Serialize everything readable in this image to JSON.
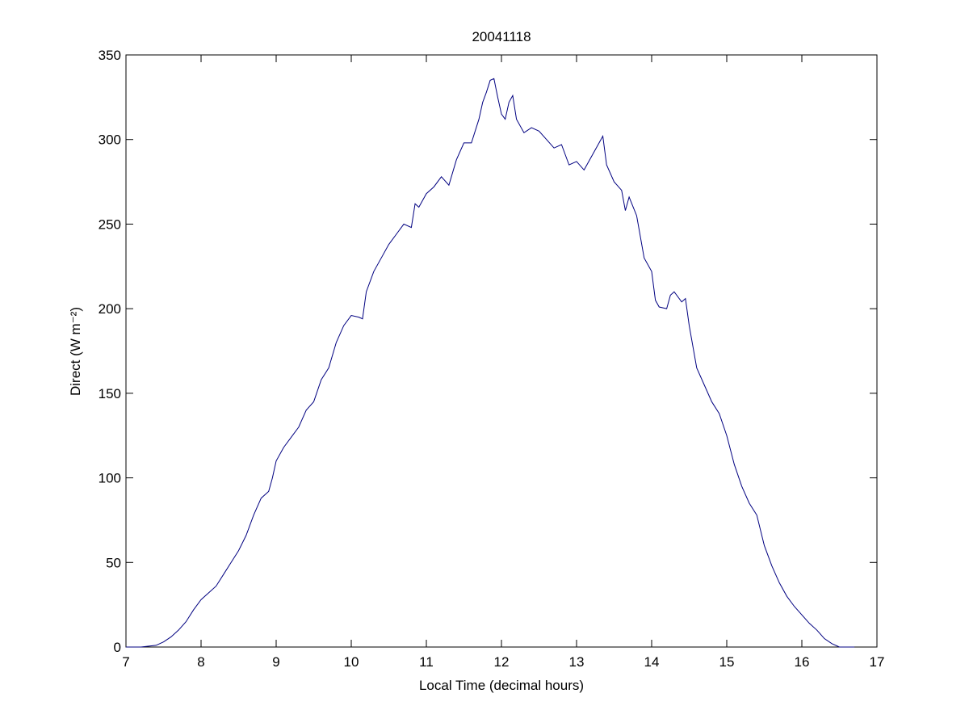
{
  "chart_data": {
    "type": "line",
    "title": "20041118",
    "x_label": "Local Time (decimal hours)",
    "y_label": "Direct (W m⁻²)",
    "xlim": [
      7,
      17
    ],
    "xticks": [
      7,
      8,
      9,
      10,
      11,
      12,
      13,
      14,
      15,
      16,
      17
    ],
    "ylim": [
      0,
      350
    ],
    "yticks": [
      0,
      50,
      100,
      150,
      200,
      250,
      300,
      350
    ],
    "grid": false,
    "series": [
      {
        "color": "#000080",
        "x": [
          7.0,
          7.2,
          7.4,
          7.5,
          7.6,
          7.7,
          7.8,
          7.9,
          8.0,
          8.1,
          8.2,
          8.3,
          8.4,
          8.5,
          8.6,
          8.7,
          8.8,
          8.9,
          8.95,
          9.0,
          9.1,
          9.2,
          9.3,
          9.4,
          9.5,
          9.6,
          9.7,
          9.8,
          9.9,
          10.0,
          10.1,
          10.15,
          10.2,
          10.3,
          10.4,
          10.5,
          10.6,
          10.7,
          10.8,
          10.85,
          10.9,
          11.0,
          11.1,
          11.2,
          11.3,
          11.4,
          11.5,
          11.6,
          11.7,
          11.75,
          11.8,
          11.85,
          11.9,
          11.95,
          12.0,
          12.05,
          12.1,
          12.15,
          12.2,
          12.3,
          12.4,
          12.5,
          12.6,
          12.7,
          12.8,
          12.9,
          13.0,
          13.1,
          13.2,
          13.3,
          13.35,
          13.4,
          13.5,
          13.6,
          13.65,
          13.7,
          13.8,
          13.9,
          14.0,
          14.05,
          14.1,
          14.2,
          14.25,
          14.3,
          14.4,
          14.45,
          14.5,
          14.6,
          14.7,
          14.8,
          14.9,
          15.0,
          15.1,
          15.2,
          15.3,
          15.4,
          15.5,
          15.6,
          15.7,
          15.8,
          15.9,
          16.0,
          16.1,
          16.2,
          16.3,
          16.4,
          16.5,
          16.7
        ],
        "values": [
          0,
          0,
          1,
          3,
          6,
          10,
          15,
          22,
          28,
          32,
          36,
          43,
          50,
          57,
          66,
          78,
          88,
          92,
          100,
          110,
          118,
          124,
          130,
          140,
          145,
          158,
          165,
          180,
          190,
          196,
          195,
          194,
          210,
          222,
          230,
          238,
          244,
          250,
          248,
          262,
          260,
          268,
          272,
          278,
          273,
          288,
          298,
          298,
          312,
          322,
          328,
          335,
          336,
          325,
          315,
          312,
          322,
          326,
          312,
          304,
          307,
          305,
          300,
          295,
          297,
          285,
          287,
          282,
          290,
          298,
          302,
          285,
          275,
          270,
          258,
          266,
          255,
          230,
          222,
          205,
          201,
          200,
          208,
          210,
          204,
          206,
          190,
          165,
          155,
          145,
          138,
          125,
          108,
          95,
          85,
          78,
          60,
          48,
          38,
          30,
          24,
          19,
          14,
          10,
          5,
          2,
          0,
          0
        ]
      }
    ]
  }
}
